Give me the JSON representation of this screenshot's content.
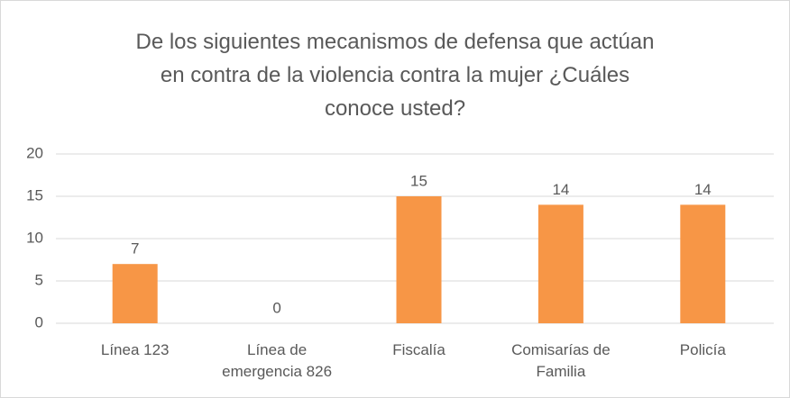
{
  "chart_data": {
    "type": "bar",
    "title": "De los siguientes mecanismos de defensa que actúan en contra de la violencia contra la mujer ¿Cuáles conoce usted?",
    "categories": [
      "Línea 123",
      "Línea de emergencia 826",
      "Fiscalía",
      "Comisarías de Familia",
      "Policía"
    ],
    "values": [
      7,
      0,
      15,
      14,
      14
    ],
    "color": "#f79646",
    "ylim": [
      0,
      20
    ],
    "yticks": [
      0,
      5,
      10,
      15,
      20
    ],
    "grid": true
  }
}
